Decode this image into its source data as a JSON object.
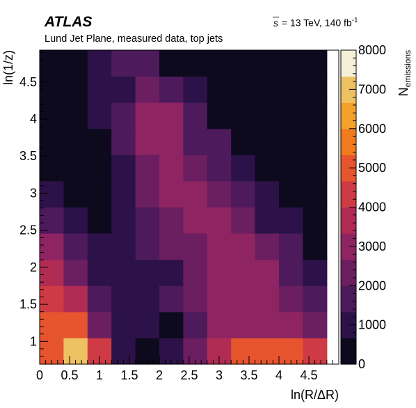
{
  "header": {
    "experiment": "ATLAS",
    "energy_label": "= 13 TeV, 140 fb",
    "energy_root": "s",
    "lumi_exponent": "-1",
    "subtitle": "Lund Jet Plane, measured data, top jets"
  },
  "chart_data": {
    "type": "heatmap",
    "xlabel": "ln(R/ΔR)",
    "ylabel": "ln(1/z)",
    "zlabel": "N_emissions",
    "xlim": [
      0,
      5
    ],
    "ylim": [
      0.693,
      4.93
    ],
    "zlim": [
      0,
      8000
    ],
    "x_ticks": [
      0,
      0.5,
      1,
      1.5,
      2,
      2.5,
      3,
      3.5,
      4,
      4.5
    ],
    "x_tick_labels": [
      "0",
      "0.5",
      "1",
      "1.5",
      "2",
      "2.5",
      "3",
      "3.5",
      "4",
      "4.5"
    ],
    "y_ticks": [
      1,
      1.5,
      2,
      2.5,
      3,
      3.5,
      4,
      4.5
    ],
    "y_tick_labels": [
      "1",
      "1.5",
      "2",
      "2.5",
      "3",
      "3.5",
      "4",
      "4.5"
    ],
    "z_ticks": [
      0,
      1000,
      2000,
      3000,
      4000,
      5000,
      6000,
      7000,
      8000
    ],
    "z_tick_labels": [
      "0",
      "1000",
      "2000",
      "3000",
      "4000",
      "5000",
      "6000",
      "7000",
      "8000"
    ],
    "x_bin_edges": [
      0,
      0.4,
      0.8,
      1.2,
      1.6,
      2.0,
      2.4,
      2.8,
      3.2,
      3.6,
      4.0,
      4.4,
      4.8
    ],
    "y_bin_edges": [
      0.693,
      1.047,
      1.4,
      1.753,
      2.106,
      2.46,
      2.813,
      3.166,
      3.519,
      3.872,
      4.226,
      4.579,
      4.932
    ],
    "values_by_row_bottom_to_top": [
      [
        5000,
        7000,
        4000,
        1100,
        500,
        1200,
        2000,
        3700,
        5000,
        5000,
        5000,
        4000
      ],
      [
        5000,
        5000,
        2600,
        1100,
        700,
        600,
        1900,
        3300,
        3300,
        3300,
        2800,
        2000
      ],
      [
        4500,
        3500,
        1500,
        700,
        700,
        1500,
        2200,
        2700,
        3000,
        3000,
        2300,
        1700
      ],
      [
        3500,
        2200,
        800,
        800,
        800,
        1300,
        2300,
        2700,
        2700,
        2700,
        1800,
        1100
      ],
      [
        3100,
        1600,
        800,
        800,
        1700,
        2300,
        2400,
        2800,
        2800,
        2200,
        1400,
        600
      ],
      [
        1800,
        1200,
        600,
        900,
        1500,
        2300,
        2800,
        2800,
        2500,
        1200,
        900,
        300
      ],
      [
        800,
        500,
        400,
        800,
        2200,
        2900,
        2900,
        2200,
        1700,
        1000,
        200,
        150
      ],
      [
        400,
        150,
        150,
        1300,
        2400,
        3100,
        2100,
        1700,
        1000,
        400,
        150,
        150
      ],
      [
        250,
        100,
        350,
        1700,
        2800,
        2800,
        1900,
        1400,
        300,
        100,
        100,
        100
      ],
      [
        200,
        200,
        900,
        1600,
        2700,
        2700,
        1500,
        600,
        150,
        100,
        100,
        100
      ],
      [
        150,
        200,
        1100,
        1300,
        2600,
        1500,
        1300,
        150,
        150,
        100,
        100,
        100
      ],
      [
        150,
        150,
        1100,
        1500,
        1400,
        600,
        600,
        150,
        150,
        150,
        150,
        150
      ]
    ]
  },
  "colors": {
    "colormap": [
      "#0e0a1e",
      "#2c1248",
      "#4d1a5c",
      "#6b1e60",
      "#8e2462",
      "#b02c55",
      "#cf3b44",
      "#e6552e",
      "#f07a1e",
      "#f4a02c",
      "#eec262",
      "#f5f0d8"
    ]
  }
}
